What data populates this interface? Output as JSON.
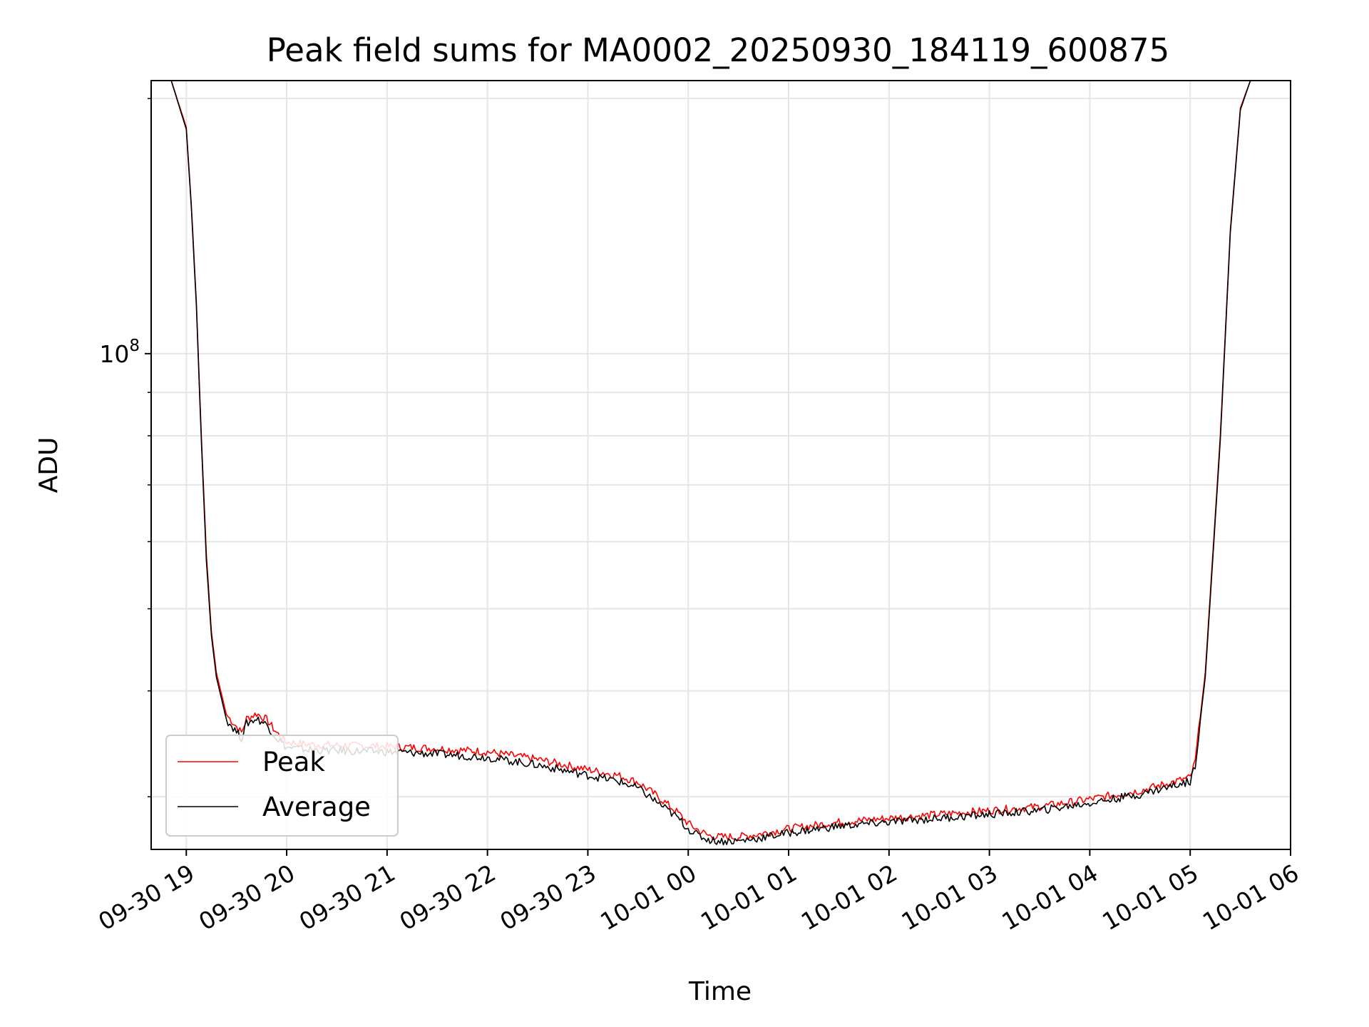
{
  "chart_data": {
    "type": "line",
    "title": "Peak field sums for MA0002_20250930_184119_600875",
    "xlabel": "Time",
    "ylabel": "ADU",
    "yscale": "log",
    "grid": true,
    "legend_position": "lower-left",
    "xlim_hours": [
      -0.35,
      11.0
    ],
    "ylim": [
      26000000,
      210000000
    ],
    "x_tick_labels": [
      "09-30 19",
      "09-30 20",
      "09-30 21",
      "09-30 22",
      "09-30 23",
      "10-01 00",
      "10-01 01",
      "10-01 02",
      "10-01 03",
      "10-01 04",
      "10-01 05",
      "10-01 06"
    ],
    "y_tick_labels": [
      {
        "base": "10",
        "exp": "8"
      }
    ],
    "x_hours_note": "x values are hours relative to 09-30 19:00",
    "series": [
      {
        "name": "Peak",
        "color": "#ff0000",
        "x": [
          -0.15,
          0.0,
          0.05,
          0.1,
          0.15,
          0.2,
          0.25,
          0.3,
          0.4,
          0.5,
          0.55,
          0.6,
          0.7,
          0.8,
          0.9,
          1.0,
          1.2,
          1.5,
          2.0,
          2.5,
          3.0,
          3.5,
          4.0,
          4.3,
          4.5,
          4.7,
          4.9,
          5.0,
          5.1,
          5.2,
          5.3,
          5.5,
          5.7,
          6.0,
          6.5,
          7.0,
          7.5,
          8.0,
          8.5,
          9.0,
          9.5,
          10.0,
          10.05,
          10.15,
          10.3,
          10.4,
          10.5,
          10.6,
          10.7,
          11.0
        ],
        "y": [
          210000000,
          185000000,
          150000000,
          115000000,
          80000000,
          58000000,
          47000000,
          42000000,
          37500000,
          36300000,
          35700000,
          37100000,
          37600000,
          37000000,
          35700000,
          34800000,
          34600000,
          34500000,
          34400000,
          34200000,
          33900000,
          33200000,
          32300000,
          31800000,
          31200000,
          30000000,
          28700000,
          27900000,
          27400000,
          27000000,
          26900000,
          26900000,
          27100000,
          27500000,
          28000000,
          28300000,
          28600000,
          28900000,
          29200000,
          29800000,
          30500000,
          31600000,
          33000000,
          42000000,
          80000000,
          140000000,
          195000000,
          210000000,
          210000000,
          210000000
        ]
      },
      {
        "name": "Average",
        "color": "#000000",
        "x": [
          -0.15,
          0.0,
          0.05,
          0.1,
          0.15,
          0.2,
          0.25,
          0.3,
          0.4,
          0.5,
          0.55,
          0.6,
          0.7,
          0.8,
          0.9,
          1.0,
          1.2,
          1.5,
          2.0,
          2.5,
          3.0,
          3.5,
          4.0,
          4.3,
          4.5,
          4.7,
          4.9,
          5.0,
          5.1,
          5.2,
          5.3,
          5.5,
          5.7,
          6.0,
          6.5,
          7.0,
          7.5,
          8.0,
          8.5,
          9.0,
          9.5,
          10.0,
          10.05,
          10.15,
          10.3,
          10.4,
          10.5,
          10.6,
          10.7,
          11.0
        ],
        "y": [
          210000000,
          184000000,
          149000000,
          114000000,
          79000000,
          57000000,
          46500000,
          41500000,
          37000000,
          35800000,
          35200000,
          36600000,
          37100000,
          36500000,
          35200000,
          34300000,
          34100000,
          34000000,
          33900000,
          33700000,
          33400000,
          32700000,
          31800000,
          31300000,
          30700000,
          29500000,
          28300000,
          27500000,
          27000000,
          26700000,
          26600000,
          26600000,
          26800000,
          27200000,
          27700000,
          28000000,
          28300000,
          28600000,
          28900000,
          29500000,
          30200000,
          31300000,
          32700000,
          41500000,
          79000000,
          139000000,
          194000000,
          210000000,
          210000000,
          210000000
        ]
      }
    ],
    "annotations": []
  }
}
